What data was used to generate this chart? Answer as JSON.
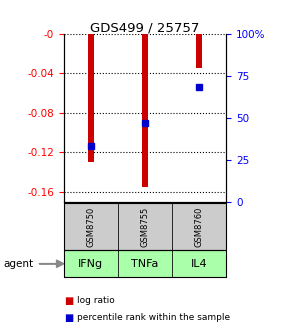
{
  "title": "GDS499 / 25757",
  "categories": [
    "IFNg",
    "TNFa",
    "IL4"
  ],
  "gsm_labels": [
    "GSM8750",
    "GSM8755",
    "GSM8760"
  ],
  "log_ratios": [
    -0.13,
    -0.155,
    -0.035
  ],
  "percentile_ranks_pct": [
    33,
    47,
    68
  ],
  "left_ylim": [
    -0.17,
    0.0
  ],
  "left_yticks": [
    0,
    -0.04,
    -0.08,
    -0.12,
    -0.16
  ],
  "left_yticklabels": [
    "-0",
    "-0.04",
    "-0.08",
    "-0.12",
    "-0.16"
  ],
  "right_ylim": [
    0,
    100
  ],
  "right_yticks": [
    0,
    25,
    50,
    75,
    100
  ],
  "right_yticklabels": [
    "0",
    "25",
    "50",
    "75",
    "100%"
  ],
  "bar_color": "#cc0000",
  "dot_color": "#0000cc",
  "agent_bg_color": "#aaffaa",
  "gsm_bg_color": "#cccccc",
  "legend_red_label": "log ratio",
  "legend_blue_label": "percentile rank within the sample",
  "bar_width": 0.12
}
